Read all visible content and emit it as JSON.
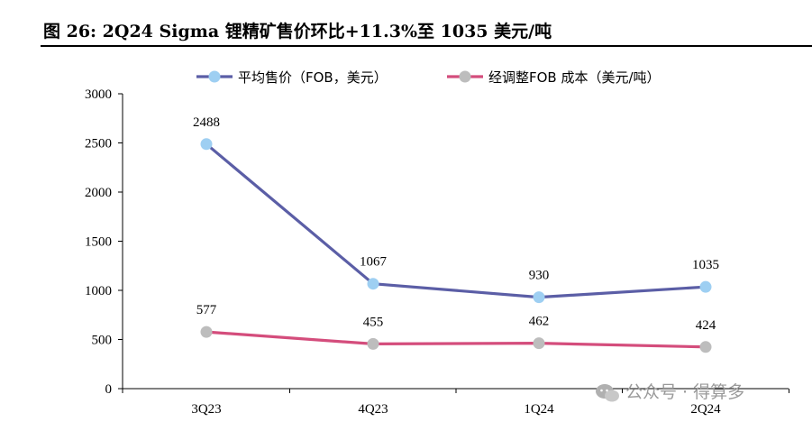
{
  "title": "图  26:  2Q24 Sigma 锂精矿售价环比+11.3%至 1035 美元/吨",
  "watermark": "公众号 · 得算多",
  "colors": {
    "series1": "#5b5ea6",
    "series1_marker": "#9ecff2",
    "series2": "#d44d7c",
    "series2_marker": "#bdbdbd"
  },
  "chart_data": {
    "type": "line",
    "categories": [
      "3Q23",
      "4Q23",
      "1Q24",
      "2Q24"
    ],
    "series": [
      {
        "name": "平均售价（FOB，美元）",
        "values": [
          2488,
          1067,
          930,
          1035
        ]
      },
      {
        "name": "经调整FOB 成本（美元/吨）",
        "values": [
          577,
          455,
          462,
          424
        ]
      }
    ],
    "ylim": [
      0,
      3000
    ],
    "yticks": [
      0,
      500,
      1000,
      1500,
      2000,
      2500,
      3000
    ],
    "grid": false,
    "legend": "top-center"
  }
}
